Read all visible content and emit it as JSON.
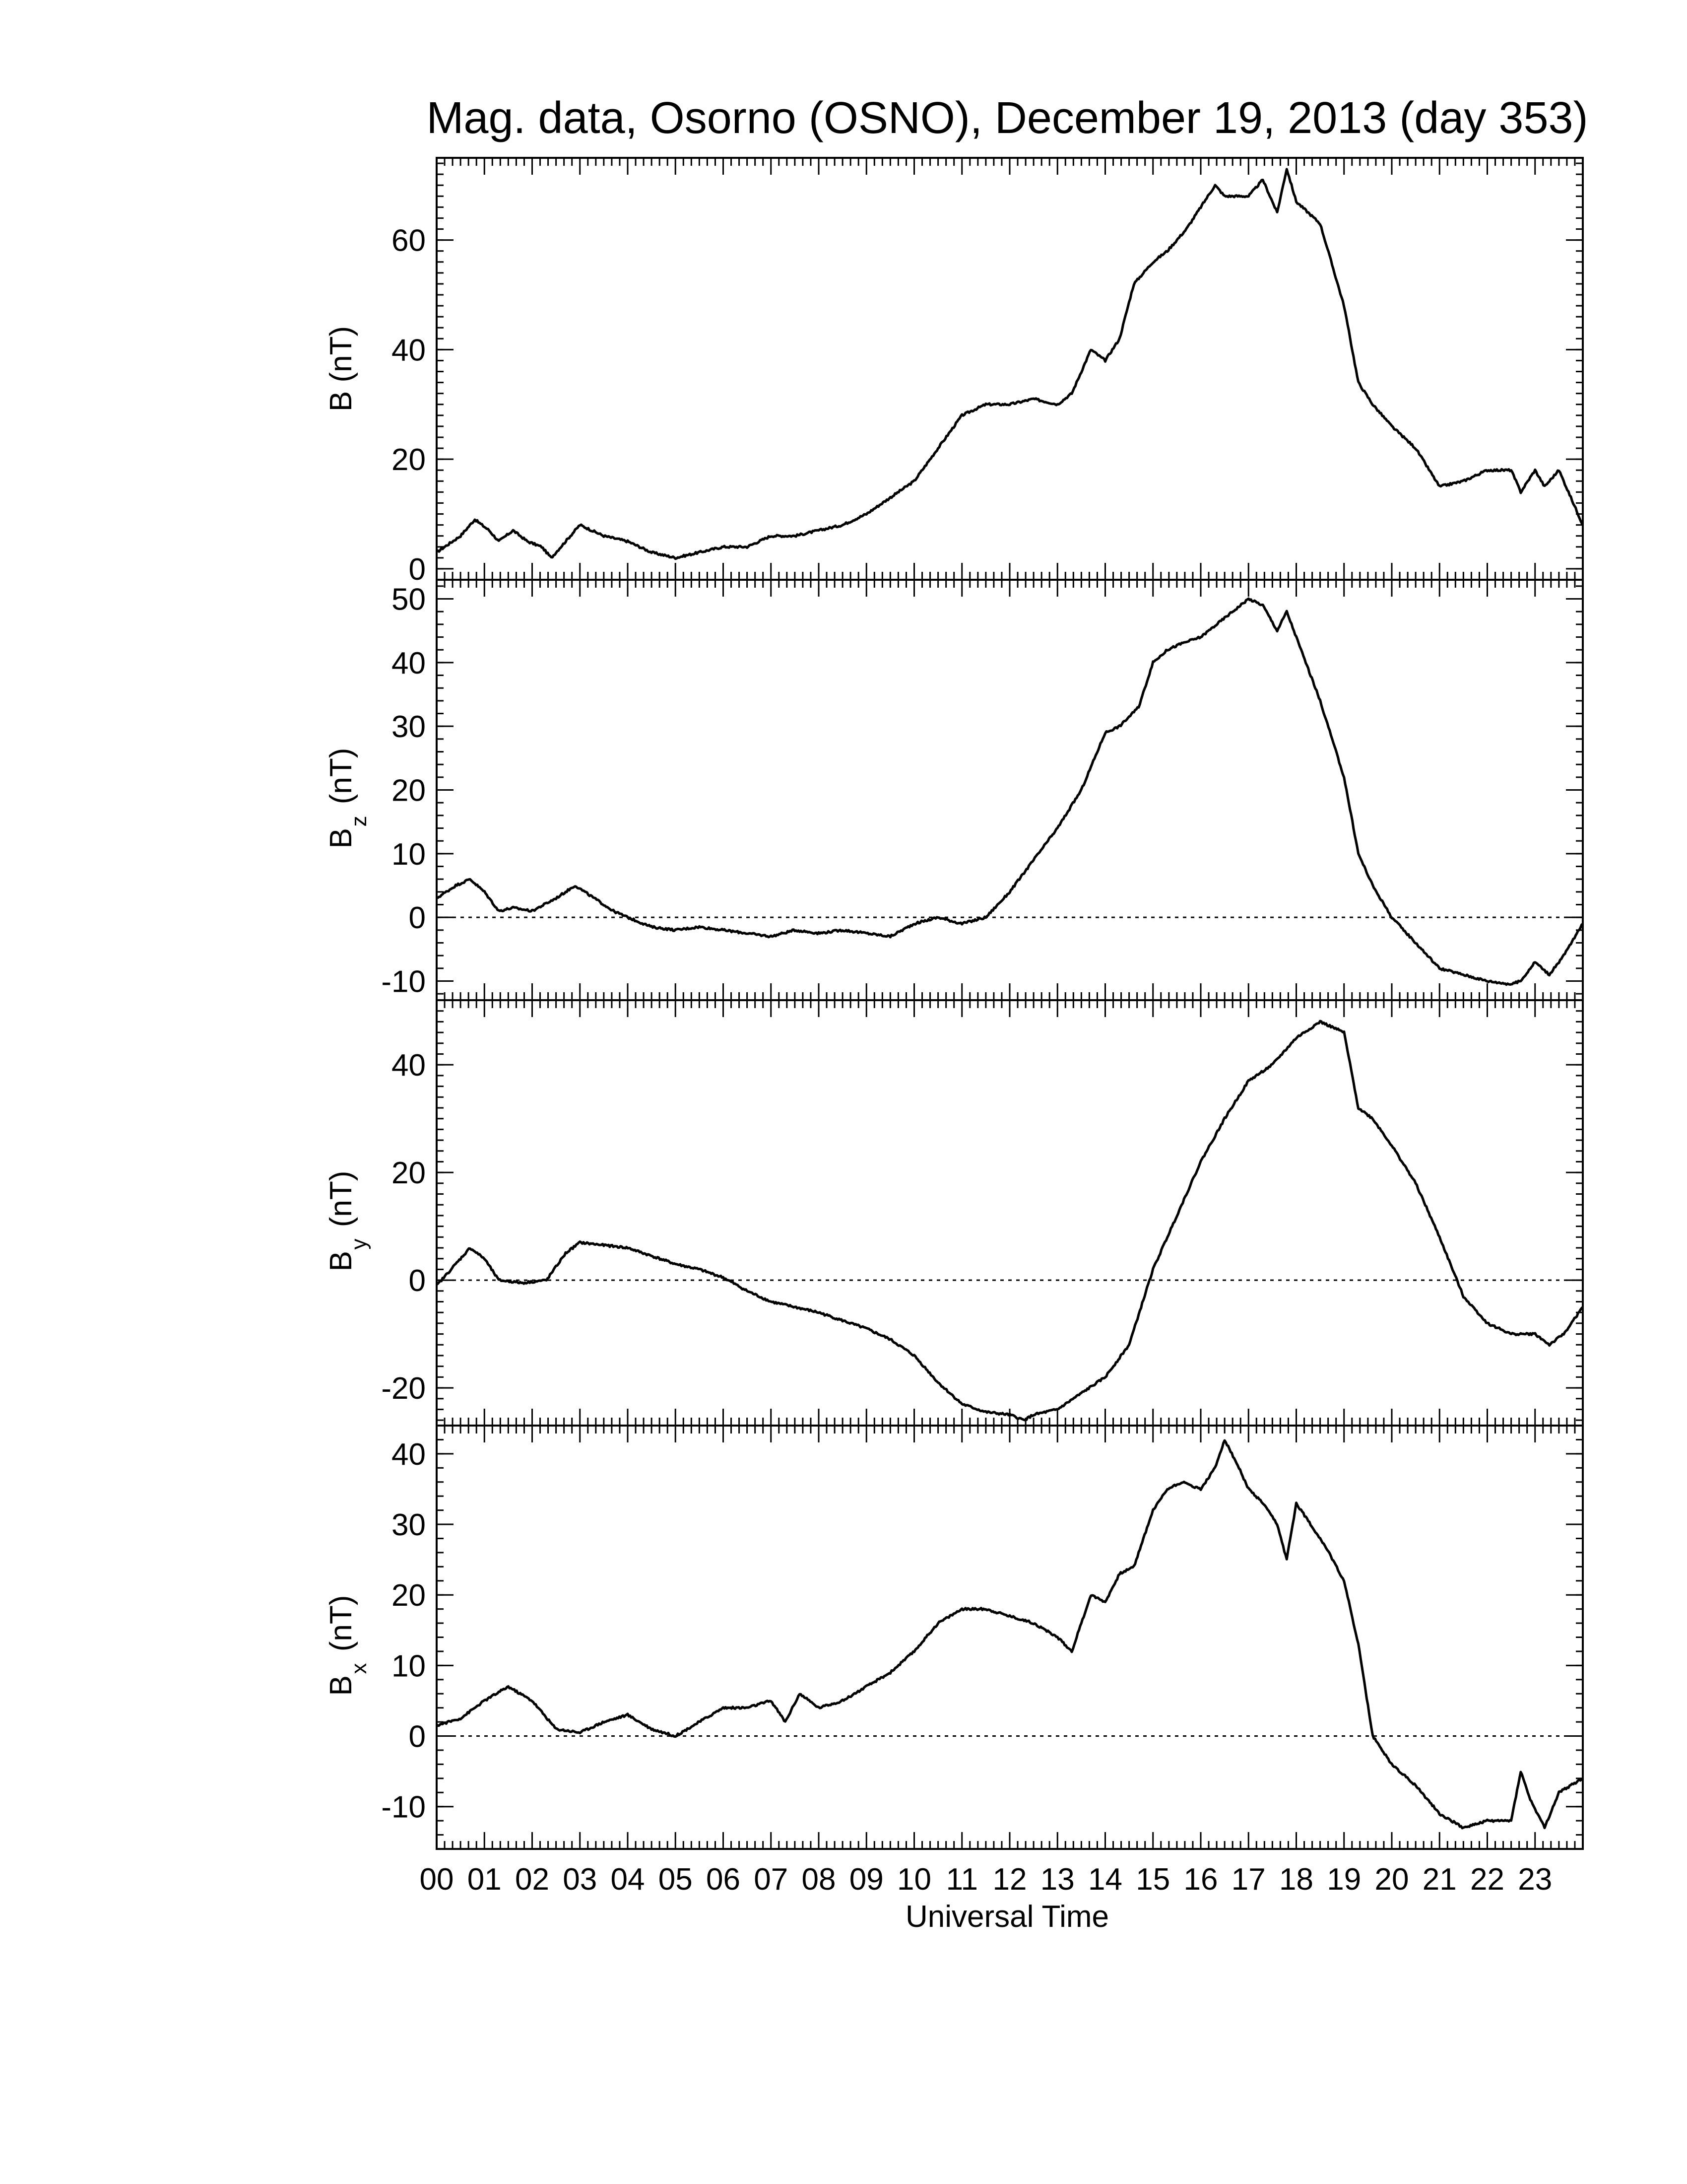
{
  "title": "Mag. data, Osorno (OSNO), December 19, 2013 (day 353)",
  "xlabel": "Universal Time",
  "xticks": [
    "00",
    "01",
    "02",
    "03",
    "04",
    "05",
    "06",
    "07",
    "08",
    "09",
    "10",
    "11",
    "12",
    "13",
    "14",
    "15",
    "16",
    "17",
    "18",
    "19",
    "20",
    "21",
    "22",
    "23"
  ],
  "chart_data": [
    {
      "type": "line",
      "ylabel": "B (nT)",
      "ylim": [
        -2,
        75
      ],
      "xlim": [
        0,
        24
      ],
      "yticks": [
        0,
        20,
        40,
        60
      ],
      "zero_line": false,
      "x": [
        0,
        0.5,
        0.8,
        1.1,
        1.3,
        1.6,
        1.9,
        2.2,
        2.4,
        2.7,
        3.0,
        3.5,
        4.0,
        4.5,
        5.0,
        5.5,
        6.0,
        6.5,
        7.0,
        7.5,
        8.0,
        8.5,
        9.0,
        9.5,
        10.0,
        10.5,
        11.0,
        11.5,
        12.0,
        12.5,
        13.0,
        13.3,
        13.7,
        14.0,
        14.3,
        14.6,
        15.0,
        15.3,
        15.7,
        16.0,
        16.3,
        16.5,
        17.0,
        17.3,
        17.6,
        17.8,
        18.0,
        18.5,
        19.0,
        19.3,
        19.6,
        20.0,
        20.5,
        21.0,
        21.5,
        22.0,
        22.5,
        22.7,
        23.0,
        23.2,
        23.5,
        24.0
      ],
      "y": [
        3,
        6,
        9,
        7,
        5,
        7,
        5,
        4,
        2,
        5,
        8,
        6,
        5,
        3,
        2,
        3,
        4,
        4,
        6,
        6,
        7,
        8,
        10,
        13,
        16,
        22,
        28,
        30,
        30,
        31,
        30,
        32,
        40,
        38,
        42,
        52,
        56,
        58,
        62,
        66,
        70,
        68,
        68,
        71,
        65,
        73,
        67,
        63,
        48,
        34,
        30,
        26,
        22,
        15,
        16,
        18,
        18,
        14,
        18,
        15,
        18,
        8
      ]
    },
    {
      "type": "line",
      "ylabel": "Bz (nT)",
      "ylabel_main": "B",
      "ylabel_sub": "z",
      "ylabel_unit": " (nT)",
      "ylim": [
        -13,
        53
      ],
      "xlim": [
        0,
        24
      ],
      "yticks": [
        -10,
        0,
        10,
        20,
        30,
        40,
        50
      ],
      "ytick_labels": [
        "-10",
        "0",
        "10",
        "20",
        "30",
        "40",
        "50"
      ],
      "zero_line": true,
      "x": [
        0,
        0.4,
        0.7,
        1.0,
        1.3,
        1.6,
        2.0,
        2.5,
        2.9,
        3.3,
        3.7,
        4.0,
        4.5,
        5.0,
        5.5,
        6.0,
        6.5,
        7.0,
        7.5,
        8.0,
        8.5,
        9.0,
        9.5,
        10.0,
        10.5,
        11.0,
        11.5,
        12.0,
        12.5,
        13.0,
        13.5,
        14.0,
        14.3,
        14.7,
        15.0,
        15.3,
        15.6,
        16.0,
        16.5,
        17.0,
        17.3,
        17.6,
        17.8,
        18.0,
        18.5,
        19.0,
        19.3,
        19.6,
        20.0,
        20.5,
        21.0,
        21.5,
        22.0,
        22.5,
        22.7,
        23.0,
        23.3,
        23.6,
        24.0
      ],
      "y": [
        3,
        5,
        6,
        4,
        1,
        1.5,
        1,
        3,
        5,
        3,
        1,
        0,
        -1.5,
        -2,
        -1.5,
        -2,
        -2.5,
        -3,
        -2,
        -2.5,
        -2,
        -2.5,
        -3,
        -1,
        0,
        -1,
        0,
        4,
        9,
        14,
        20,
        29,
        30,
        33,
        40,
        42,
        43,
        44,
        47,
        50,
        49,
        45,
        48,
        44,
        34,
        22,
        10,
        5,
        0,
        -4,
        -8,
        -9,
        -10,
        -10.5,
        -10,
        -7,
        -9,
        -6,
        -1
      ]
    },
    {
      "type": "line",
      "ylabel": "By (nT)",
      "ylabel_main": "B",
      "ylabel_sub": "y",
      "ylabel_unit": " (nT)",
      "ylim": [
        -27,
        52
      ],
      "xlim": [
        0,
        24
      ],
      "yticks": [
        -20,
        0,
        20,
        40
      ],
      "ytick_labels": [
        "-20",
        "0",
        "20",
        "40"
      ],
      "zero_line": true,
      "x": [
        0,
        0.3,
        0.7,
        1.0,
        1.3,
        1.8,
        2.3,
        2.7,
        3.0,
        3.5,
        4.0,
        4.5,
        5.0,
        5.5,
        6.0,
        6.5,
        7.0,
        7.5,
        8.0,
        8.5,
        9.0,
        9.5,
        10.0,
        10.5,
        11.0,
        11.5,
        12.0,
        12.3,
        12.5,
        13.0,
        13.5,
        14.0,
        14.5,
        15.0,
        15.5,
        16.0,
        16.5,
        17.0,
        17.5,
        18.0,
        18.5,
        19.0,
        19.3,
        19.6,
        20.0,
        20.5,
        21.0,
        21.5,
        22.0,
        22.5,
        23.0,
        23.3,
        23.6,
        24.0
      ],
      "y": [
        -1,
        2,
        6,
        4,
        0,
        -0.5,
        0,
        5,
        7,
        6.5,
        6,
        4.5,
        3,
        2,
        0.5,
        -2,
        -4,
        -5,
        -6,
        -7.5,
        -9,
        -11,
        -14,
        -19,
        -23,
        -24.5,
        -25,
        -26,
        -25,
        -24,
        -21,
        -18,
        -12,
        2,
        12,
        22,
        30,
        37,
        40,
        45,
        48,
        46,
        32,
        30,
        25,
        18,
        8,
        -3,
        -8,
        -10,
        -10,
        -12,
        -10,
        -5
      ]
    },
    {
      "type": "line",
      "ylabel": "Bx (nT)",
      "ylabel_main": "B",
      "ylabel_sub": "x",
      "ylabel_unit": " (nT)",
      "ylim": [
        -16,
        44
      ],
      "xlim": [
        0,
        24
      ],
      "yticks": [
        -10,
        0,
        10,
        20,
        30,
        40
      ],
      "ytick_labels": [
        "-10",
        "0",
        "10",
        "20",
        "30",
        "40"
      ],
      "zero_line": true,
      "x": [
        0,
        0.5,
        1.0,
        1.5,
        2.0,
        2.5,
        3.0,
        3.5,
        4.0,
        4.5,
        5.0,
        5.5,
        6.0,
        6.5,
        7.0,
        7.3,
        7.6,
        8.0,
        8.5,
        9.0,
        9.5,
        10.0,
        10.5,
        11.0,
        11.5,
        12.0,
        12.5,
        13.0,
        13.3,
        13.7,
        14.0,
        14.3,
        14.6,
        15.0,
        15.3,
        15.6,
        16.0,
        16.3,
        16.5,
        16.8,
        17.0,
        17.3,
        17.6,
        17.8,
        18.0,
        18.3,
        18.6,
        19.0,
        19.3,
        19.6,
        20.0,
        20.5,
        21.0,
        21.5,
        22.0,
        22.5,
        22.7,
        22.9,
        23.2,
        23.5,
        24.0
      ],
      "y": [
        1.5,
        2.5,
        5,
        7,
        5,
        1,
        0.5,
        2,
        3,
        1,
        0,
        2,
        4,
        4,
        5,
        2,
        6,
        4,
        5,
        7,
        9,
        12,
        16,
        18,
        18,
        17,
        16,
        14,
        12,
        20,
        19,
        23,
        24,
        32,
        35,
        36,
        35,
        38,
        42,
        38,
        35,
        33,
        30,
        25,
        33,
        30,
        27,
        22,
        13,
        0,
        -4,
        -7,
        -11,
        -13,
        -12,
        -12,
        -5,
        -9,
        -13,
        -8,
        -6
      ]
    }
  ]
}
